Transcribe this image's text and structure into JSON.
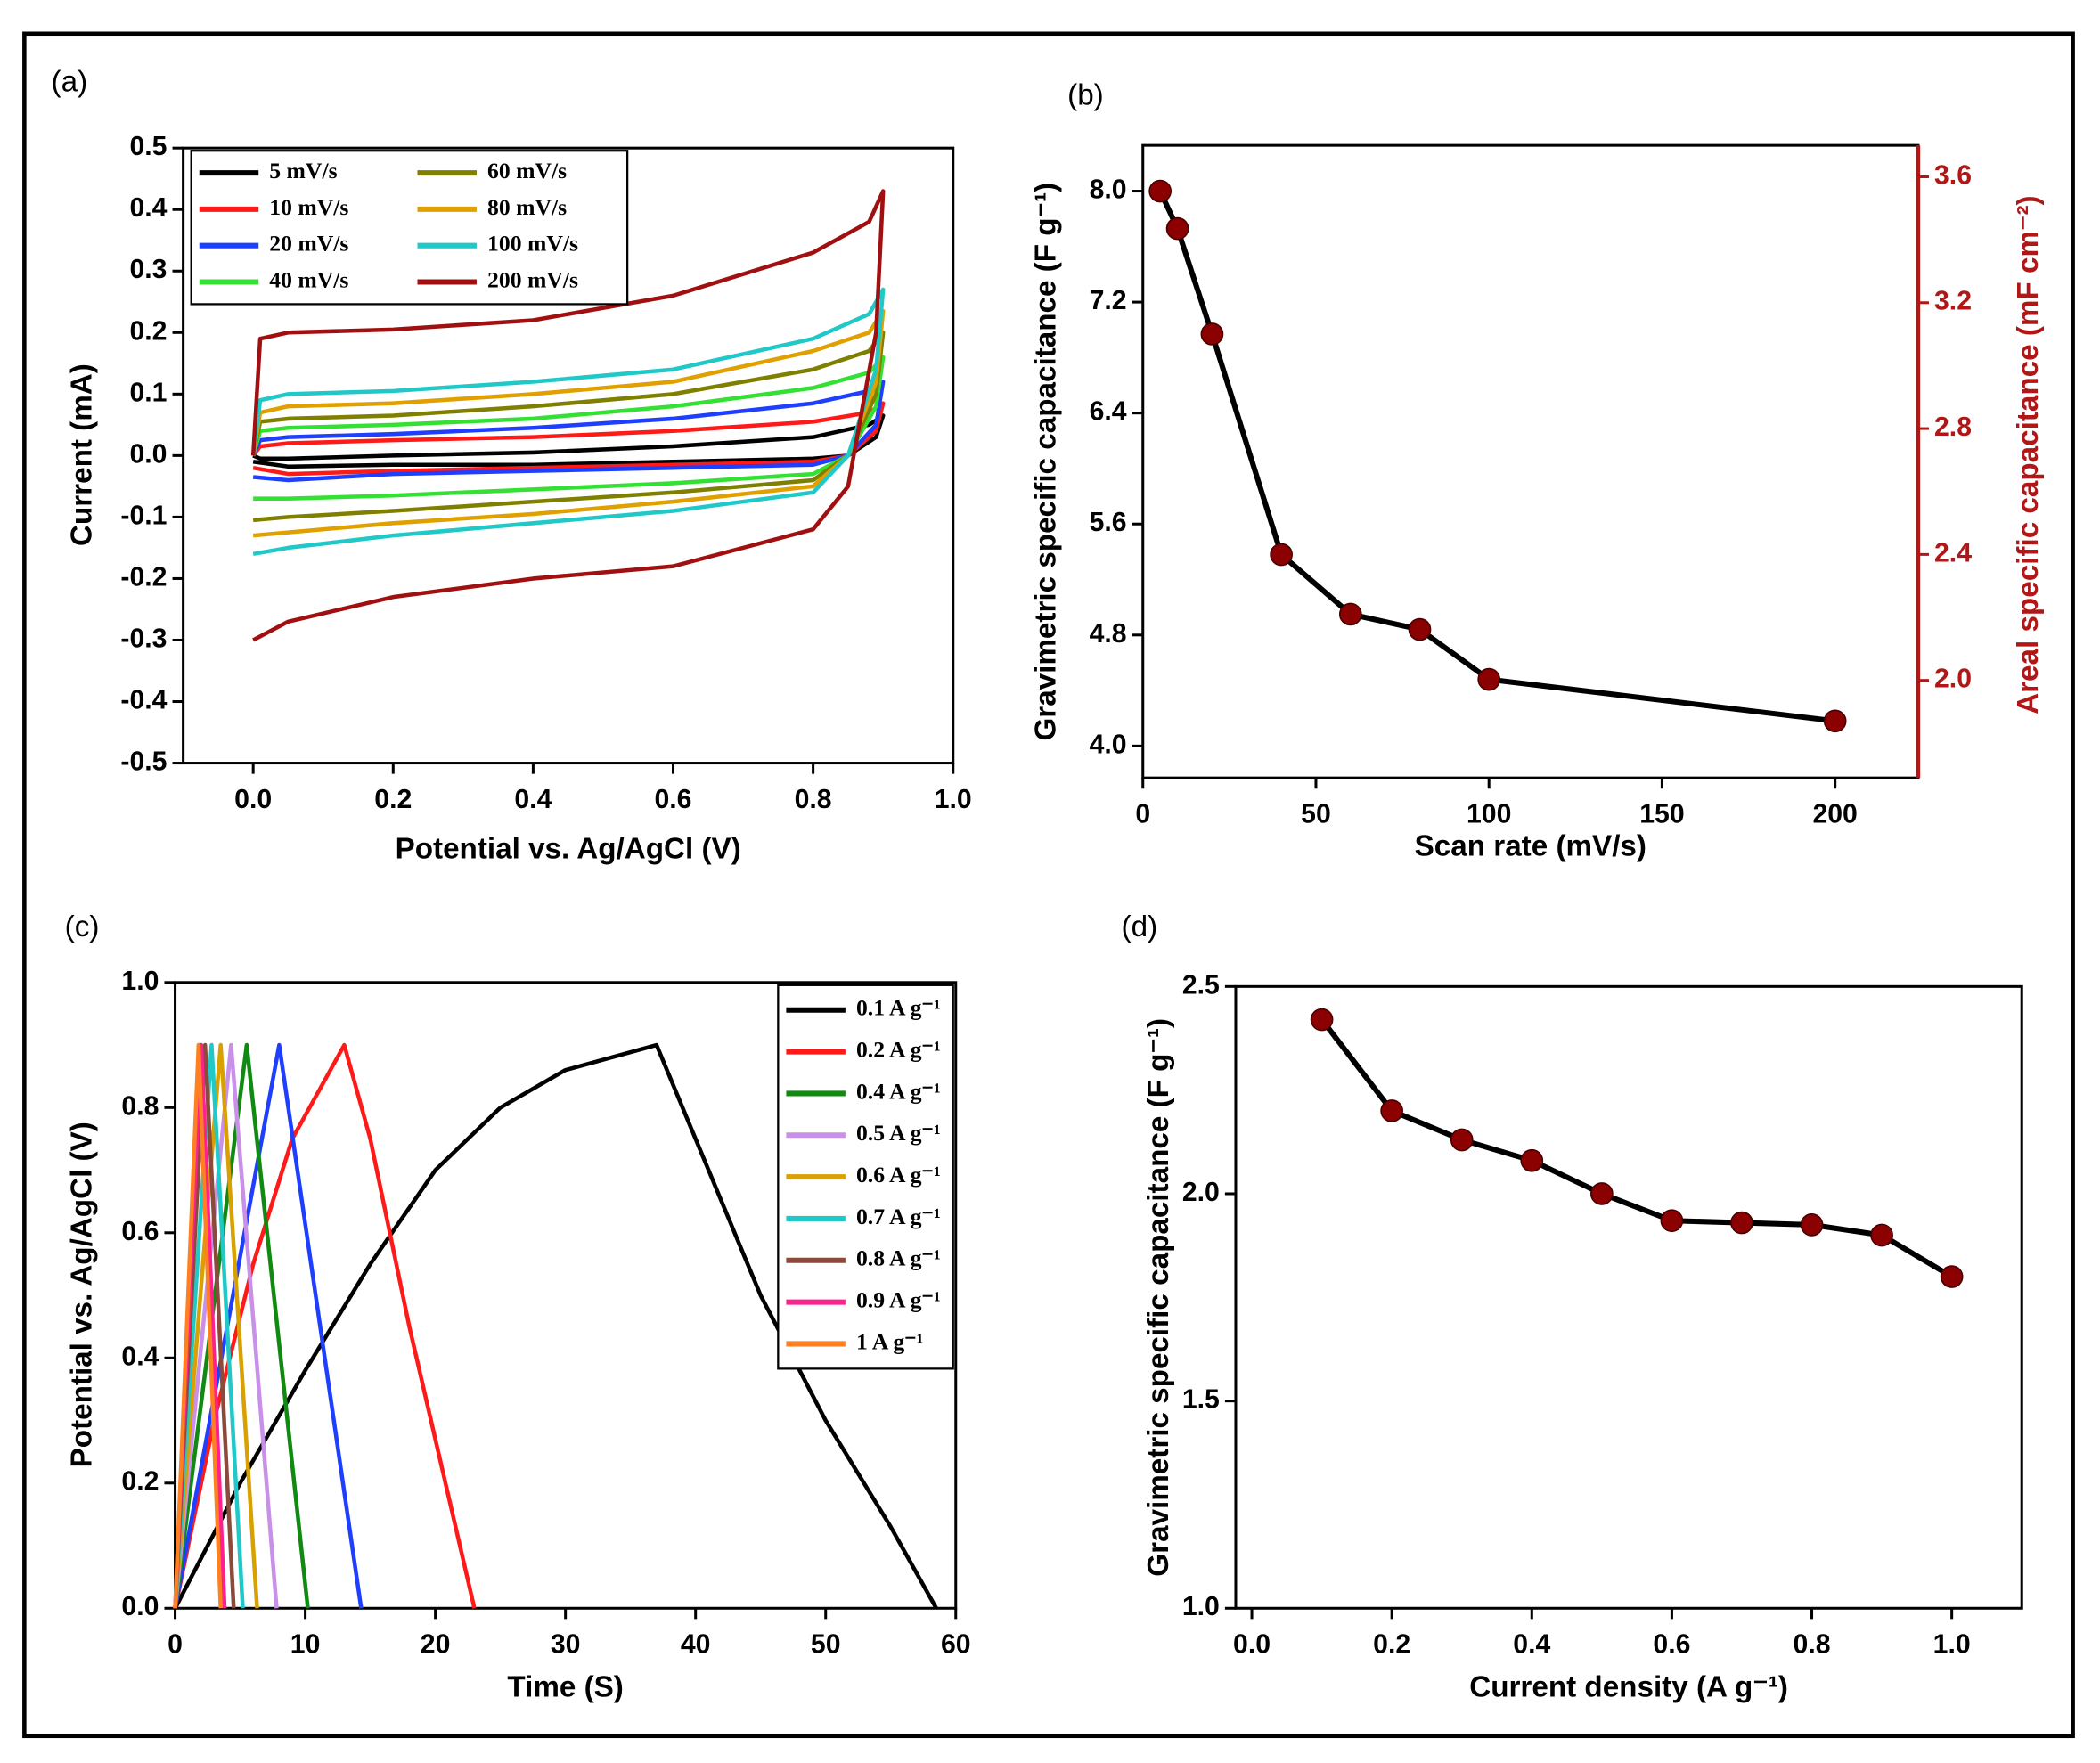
{
  "chart_data": [
    {
      "type": "line",
      "panel_label": "(a)",
      "xlabel": "Potential vs. Ag/AgCl (V)",
      "ylabel": "Current (mA)",
      "x": [
        0,
        0.01,
        0.05,
        0.2,
        0.4,
        0.6,
        0.8,
        0.88,
        0.9,
        0.89,
        0.85,
        0.8,
        0.6,
        0.4,
        0.2,
        0.05,
        0
      ],
      "series": [
        {
          "name": "5 mV/s",
          "color": "#000000",
          "values": [
            0,
            -0.005,
            -0.005,
            0,
            0.005,
            0.015,
            0.03,
            0.05,
            0.065,
            0.03,
            0.0,
            -0.005,
            -0.01,
            -0.015,
            -0.015,
            -0.018,
            -0.01
          ]
        },
        {
          "name": "10 mV/s",
          "color": "#ff1a1a",
          "values": [
            0,
            0.015,
            0.02,
            0.025,
            0.03,
            0.04,
            0.055,
            0.07,
            0.085,
            0.04,
            0.0,
            -0.01,
            -0.015,
            -0.02,
            -0.025,
            -0.03,
            -0.02
          ]
        },
        {
          "name": "20 mV/s",
          "color": "#1f3fff",
          "values": [
            0,
            0.025,
            0.03,
            0.035,
            0.045,
            0.06,
            0.085,
            0.105,
            0.12,
            0.05,
            0.0,
            -0.015,
            -0.02,
            -0.025,
            -0.03,
            -0.04,
            -0.035
          ]
        },
        {
          "name": "40 mV/s",
          "color": "#33e033",
          "values": [
            0,
            0.04,
            0.045,
            0.05,
            0.06,
            0.08,
            0.11,
            0.135,
            0.16,
            0.08,
            0.0,
            -0.03,
            -0.045,
            -0.055,
            -0.065,
            -0.07,
            -0.07
          ]
        },
        {
          "name": "60 mV/s",
          "color": "#808000",
          "values": [
            0,
            0.055,
            0.06,
            0.065,
            0.08,
            0.1,
            0.14,
            0.17,
            0.2,
            0.1,
            0.0,
            -0.04,
            -0.06,
            -0.075,
            -0.09,
            -0.1,
            -0.105
          ]
        },
        {
          "name": "80 mV/s",
          "color": "#e0a000",
          "values": [
            0,
            0.07,
            0.08,
            0.085,
            0.1,
            0.12,
            0.17,
            0.2,
            0.235,
            0.12,
            0.0,
            -0.05,
            -0.075,
            -0.095,
            -0.11,
            -0.125,
            -0.13
          ]
        },
        {
          "name": "100 mV/s",
          "color": "#20c8c8",
          "values": [
            0,
            0.09,
            0.1,
            0.105,
            0.12,
            0.14,
            0.19,
            0.23,
            0.27,
            0.14,
            0.0,
            -0.06,
            -0.09,
            -0.11,
            -0.13,
            -0.15,
            -0.16
          ]
        },
        {
          "name": "200 mV/s",
          "color": "#a01010",
          "values": [
            0,
            0.19,
            0.2,
            0.205,
            0.22,
            0.26,
            0.33,
            0.38,
            0.43,
            0.2,
            -0.05,
            -0.12,
            -0.18,
            -0.2,
            -0.23,
            -0.27,
            -0.3
          ]
        }
      ],
      "xlim": [
        -0.1,
        1.0
      ],
      "xticks": [
        {
          "value": 0,
          "label": "0.0"
        },
        0.2,
        0.4,
        0.6,
        0.8,
        {
          "value": 1,
          "label": "1.0"
        }
      ],
      "ylim": [
        -0.5,
        0.5
      ],
      "yticks": [
        -0.5,
        -0.4,
        -0.3,
        -0.2,
        -0.1,
        {
          "value": 0,
          "label": "0.0"
        },
        0.1,
        0.2,
        0.3,
        0.4,
        0.5
      ],
      "legend": "upper left",
      "legend_columns": 2
    },
    {
      "type": "line",
      "markers": true,
      "panel_label": "(b)",
      "xlabel": "Scan rate (mV/s)",
      "ylabel": "Gravimetric specific capacitance (F g⁻¹)",
      "y2label": "Areal specific capacitance (mF cm⁻²)",
      "x": [
        5,
        10,
        20,
        40,
        60,
        80,
        100,
        200
      ],
      "series": [
        {
          "color": "#000000",
          "marker_color": "#8b0000",
          "values": [
            8.0,
            7.73,
            6.97,
            5.38,
            4.95,
            4.84,
            4.48,
            4.18
          ]
        }
      ],
      "xlim": [
        0,
        224
      ],
      "xticks": [
        0,
        50,
        100,
        150,
        200
      ],
      "ylim": [
        3.77,
        8.33
      ],
      "yticks": [
        {
          "value": 4,
          "label": "4.0"
        },
        4.8,
        5.6,
        6.4,
        7.2,
        {
          "value": 8,
          "label": "8.0"
        }
      ],
      "y2lim": [
        1.69,
        3.7
      ],
      "y2ticks": [
        {
          "value": 2,
          "label": "2.0"
        },
        2.4,
        2.8,
        3.2,
        3.6
      ],
      "y2color": "#b01818"
    },
    {
      "type": "line",
      "panel_label": "(c)",
      "xlabel": "Time (S)",
      "ylabel": "Potential vs. Ag/AgCl (V)",
      "series": [
        {
          "name": "0.1 A g⁻¹",
          "color": "#000000",
          "x": [
            0,
            5,
            10,
            15,
            20,
            25,
            30,
            37,
            40,
            45,
            50,
            55,
            58.5
          ],
          "values": [
            0,
            0.2,
            0.38,
            0.55,
            0.7,
            0.8,
            0.86,
            0.9,
            0.75,
            0.5,
            0.3,
            0.13,
            0
          ]
        },
        {
          "name": "0.2 A g⁻¹",
          "color": "#ff1a1a",
          "x": [
            0,
            3,
            6,
            9,
            13,
            15,
            18,
            21,
            23
          ],
          "values": [
            0,
            0.3,
            0.55,
            0.75,
            0.9,
            0.75,
            0.45,
            0.18,
            0
          ]
        },
        {
          "color": "#1f3fff",
          "x": [
            0,
            8,
            14.3
          ],
          "values": [
            0,
            0.9,
            0
          ]
        },
        {
          "name": "0.4 A g⁻¹",
          "color": "#108a10",
          "x": [
            0,
            5.5,
            10.2
          ],
          "values": [
            0,
            0.9,
            0
          ]
        },
        {
          "name": "0.5 A g⁻¹",
          "color": "#c890e8",
          "x": [
            0,
            4.3,
            7.8
          ],
          "values": [
            0,
            0.9,
            0
          ]
        },
        {
          "name": "0.6 A g⁻¹",
          "color": "#d8a000",
          "x": [
            0,
            3.5,
            6.3
          ],
          "values": [
            0,
            0.9,
            0
          ]
        },
        {
          "name": "0.7 A g⁻¹",
          "color": "#20c8c8",
          "x": [
            0,
            2.8,
            5.2
          ],
          "values": [
            0,
            0.9,
            0
          ]
        },
        {
          "name": "0.8 A g⁻¹",
          "color": "#8b4a3a",
          "x": [
            0,
            2.3,
            4.5
          ],
          "values": [
            0,
            0.9,
            0
          ]
        },
        {
          "name": "0.9 A g⁻¹",
          "color": "#ff2090",
          "x": [
            0,
            2.0,
            3.8
          ],
          "values": [
            0,
            0.9,
            0
          ]
        },
        {
          "name": "1 A g⁻¹",
          "color": "#ff8020",
          "x": [
            0,
            1.8,
            3.5
          ],
          "values": [
            0,
            0.9,
            0
          ]
        }
      ],
      "xlim": [
        0,
        60
      ],
      "xticks": [
        0,
        10,
        20,
        30,
        40,
        50,
        60
      ],
      "ylim": [
        0,
        1.0
      ],
      "yticks": [
        {
          "value": 0,
          "label": "0.0"
        },
        0.2,
        0.4,
        0.6,
        0.8,
        {
          "value": 1,
          "label": "1.0"
        }
      ],
      "legend": "upper right",
      "legend_columns": 1
    },
    {
      "type": "line",
      "markers": true,
      "panel_label": "(d)",
      "xlabel": "Current density (A g⁻¹)",
      "ylabel": "Gravimetric specific capacitance (F g⁻¹)",
      "x": [
        0.1,
        0.2,
        0.3,
        0.4,
        0.5,
        0.6,
        0.7,
        0.8,
        0.9,
        1.0
      ],
      "series": [
        {
          "color": "#000000",
          "marker_color": "#8b0000",
          "values": [
            2.42,
            2.2,
            2.13,
            2.08,
            2.0,
            1.935,
            1.93,
            1.925,
            1.9,
            1.8
          ]
        }
      ],
      "xlim": [
        -0.023,
        1.1
      ],
      "xticks": [
        {
          "value": 0,
          "label": "0.0"
        },
        0.2,
        0.4,
        0.6,
        0.8,
        {
          "value": 1,
          "label": "1.0"
        }
      ],
      "ylim": [
        1.0,
        2.5
      ],
      "yticks": [
        {
          "value": 1,
          "label": "1.0"
        },
        1.5,
        {
          "value": 2,
          "label": "2.0"
        },
        2.5
      ]
    }
  ]
}
